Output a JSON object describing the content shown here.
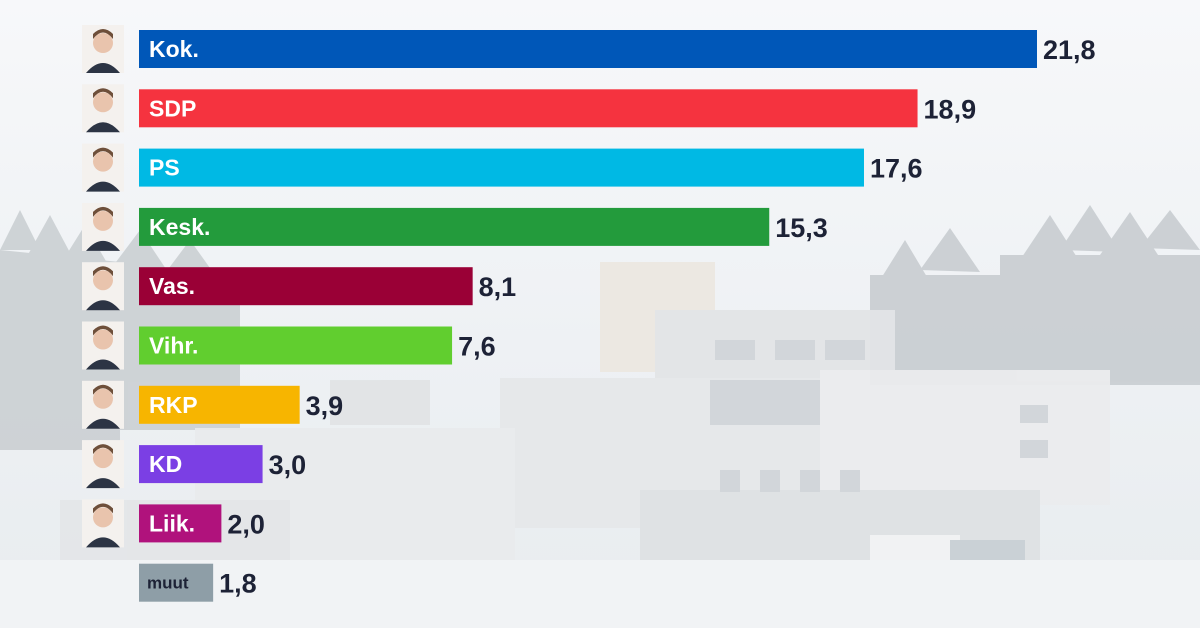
{
  "chart_data": {
    "type": "bar",
    "orientation": "horizontal",
    "categories": [
      "Kok.",
      "SDP",
      "PS",
      "Kesk.",
      "Vas.",
      "Vihr.",
      "RKP",
      "KD",
      "Liik.",
      "muut"
    ],
    "values": [
      21.8,
      18.9,
      17.6,
      15.3,
      8.1,
      7.6,
      3.9,
      3.0,
      2.0,
      1.8
    ],
    "value_labels": [
      "21,8",
      "18,9",
      "17,6",
      "15,3",
      "8,1",
      "7,6",
      "3,9",
      "3,0",
      "2,0",
      "1,8"
    ],
    "colors": [
      "#0057b8",
      "#f5333f",
      "#00b9e4",
      "#239b3c",
      "#9a0036",
      "#61ce2f",
      "#f7b500",
      "#7b3fe4",
      "#b0127c",
      "#8e9ea7"
    ],
    "title": "",
    "xlabel": "",
    "ylabel": "",
    "grid": false,
    "legend": "none"
  },
  "background": {
    "description_icon": "hospital-building-photo"
  },
  "portraits": [
    "kok-leader-portrait",
    "sdp-leader-portrait",
    "ps-leader-portrait",
    "kesk-leader-portrait",
    "vas-leader-portrait",
    "vihr-leader-portrait",
    "rkp-leader-portrait",
    "kd-leader-portrait",
    "liik-leader-portrait",
    ""
  ]
}
